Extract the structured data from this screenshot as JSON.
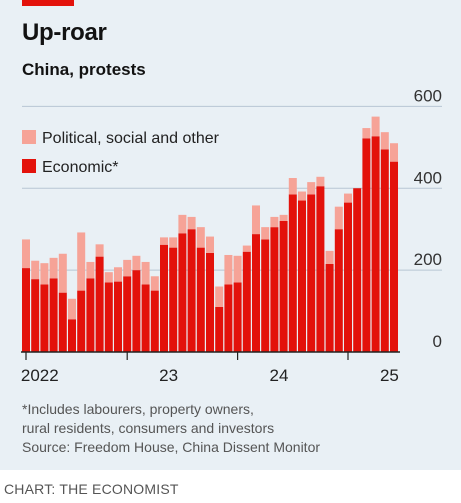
{
  "header": {
    "title": "Up-roar",
    "subtitle": "China, protests"
  },
  "footnote": {
    "line1": "*Includes labourers, property owners,",
    "line2": "rural residents, consumers and investors",
    "source": "Source: Freedom House, China Dissent Monitor"
  },
  "credit": "CHART: THE ECONOMIST",
  "colors": {
    "economic": "#e3120b",
    "other": "#f6a397",
    "grid": "#b7c6d3",
    "axis": "#222222",
    "background": "#e9f0f5",
    "brand": "#e3120b"
  },
  "chart_data": {
    "type": "bar",
    "stacked": true,
    "x_labels": [
      "2022",
      "23",
      "24",
      "25"
    ],
    "x_label_bar_index": [
      1.5,
      15.5,
      27.5,
      39.5
    ],
    "year_tick_bar_index": [
      -0.5,
      10.5,
      22.5,
      34.5
    ],
    "y_ticks": [
      0,
      200,
      400,
      600
    ],
    "ylim": [
      0,
      640
    ],
    "grid": true,
    "legend_position": "top-left",
    "series": [
      {
        "name": "Economic*",
        "values": [
          205,
          178,
          165,
          180,
          145,
          80,
          150,
          180,
          233,
          170,
          172,
          185,
          200,
          165,
          150,
          262,
          255,
          290,
          300,
          255,
          242,
          110,
          165,
          170,
          245,
          288,
          275,
          305,
          320,
          385,
          370,
          385,
          405,
          215,
          300,
          365,
          400,
          522,
          527,
          495,
          465
        ]
      },
      {
        "name": "Political, social and other",
        "values": [
          70,
          45,
          52,
          50,
          95,
          50,
          142,
          40,
          30,
          25,
          35,
          40,
          35,
          55,
          35,
          18,
          25,
          45,
          30,
          50,
          40,
          50,
          72,
          65,
          15,
          70,
          30,
          25,
          15,
          40,
          22,
          30,
          23,
          32,
          55,
          22,
          0,
          25,
          48,
          42,
          45
        ]
      }
    ]
  }
}
